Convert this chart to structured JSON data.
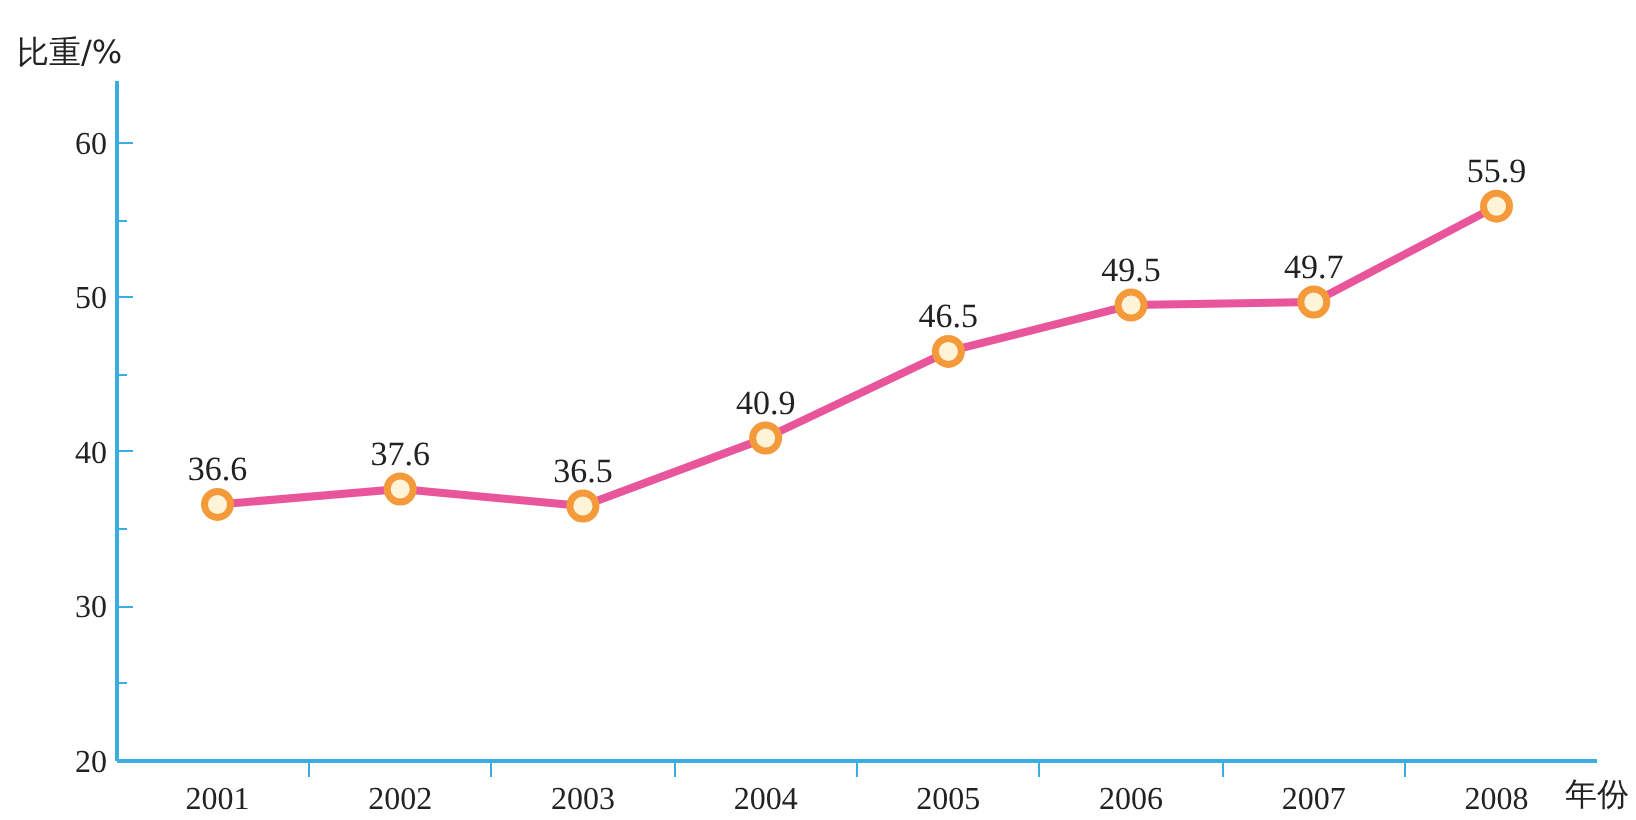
{
  "chart_data": {
    "type": "line",
    "ylabel": "比重/%",
    "xlabel": "年份",
    "categories": [
      "2001",
      "2002",
      "2003",
      "2004",
      "2005",
      "2006",
      "2007",
      "2008"
    ],
    "series": [
      {
        "color": "#e8559a",
        "values": [
          36.6,
          37.6,
          36.5,
          40.9,
          46.5,
          49.5,
          49.7,
          55.9
        ]
      }
    ],
    "ylim": [
      20,
      64
    ],
    "yticks": [
      20,
      30,
      40,
      50,
      60
    ],
    "data_labels": true,
    "marker": "circle",
    "grid": false,
    "line_style": "solid"
  }
}
